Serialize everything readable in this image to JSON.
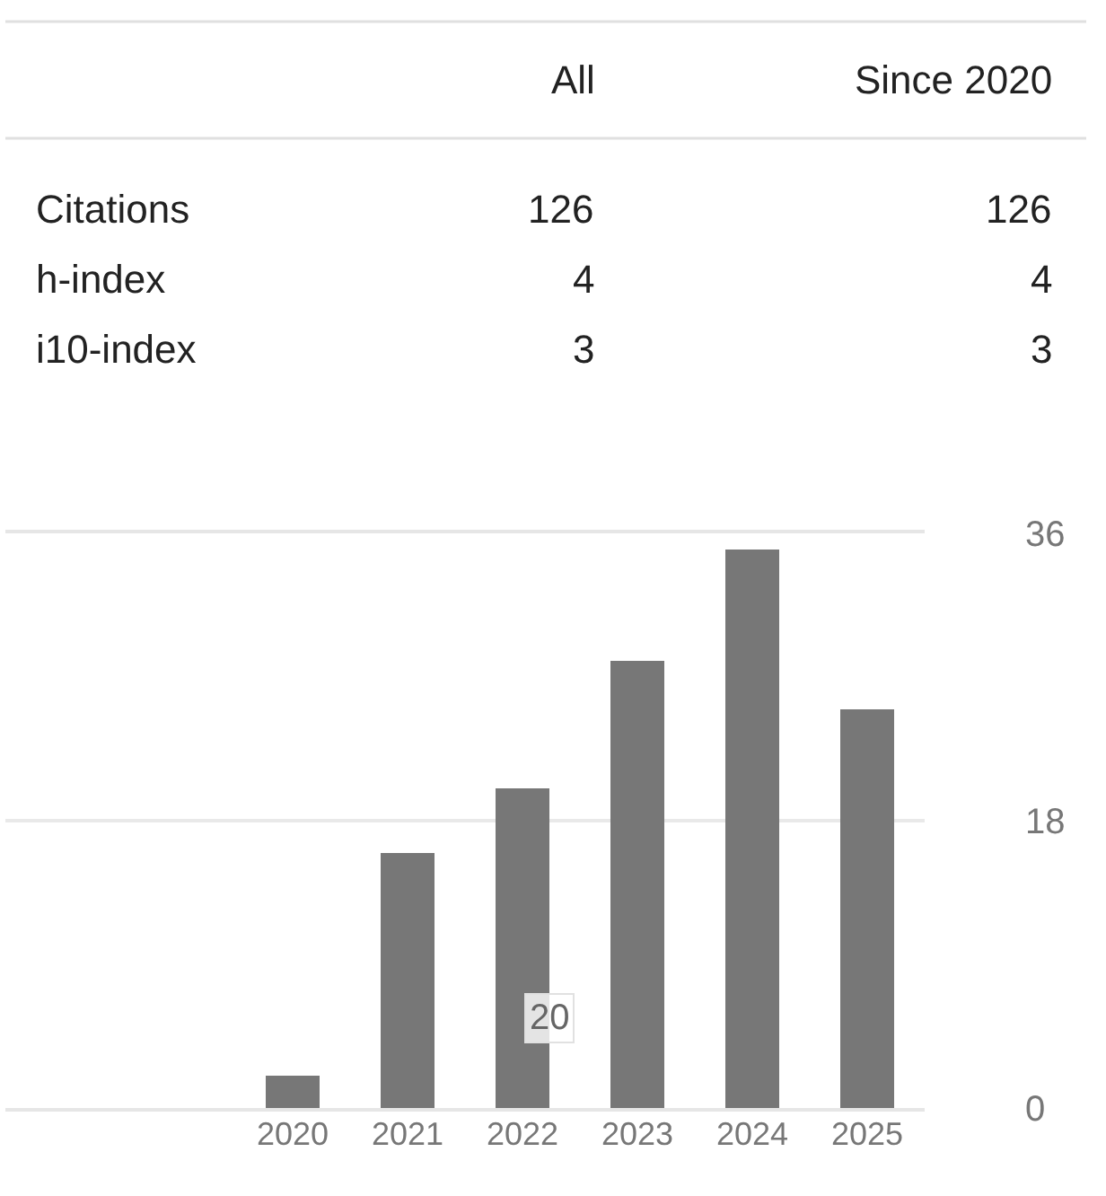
{
  "chart_data": [
    {
      "type": "other",
      "categories": [
        "Citations",
        "h-index",
        "i10-index"
      ],
      "series": [
        {
          "name": "All",
          "values": [
            126,
            4,
            3
          ]
        },
        {
          "name": "Since 2020",
          "values": [
            126,
            4,
            3
          ]
        }
      ],
      "data_labels": true
    },
    {
      "type": "bar",
      "categories": [
        "2020",
        "2021",
        "2022",
        "2023",
        "2024",
        "2025"
      ],
      "values": [
        2,
        16,
        20,
        28,
        35,
        25
      ],
      "color": "#777777",
      "ylim": [
        0,
        36
      ],
      "yticks": [
        0,
        18,
        36
      ],
      "grid": "y",
      "value_labels": [
        null,
        null,
        "20",
        null,
        null,
        null
      ]
    }
  ]
}
